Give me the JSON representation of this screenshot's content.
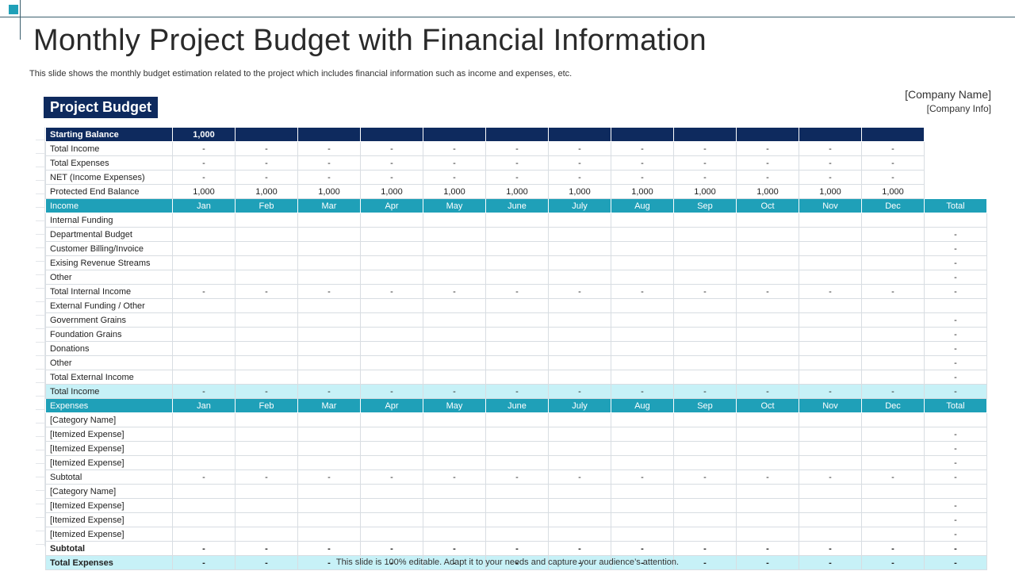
{
  "header": {
    "title": "Monthly Project Budget with Financial Information",
    "subtitle": "This slide shows the monthly budget estimation related to the project which includes financial information such as income and expenses, etc.",
    "badge": "Project Budget",
    "company_name": "[Company Name]",
    "company_info": "[Company Info]"
  },
  "colors": {
    "dark_navy": "#0e2a5e",
    "teal": "#1fa0b8",
    "light_teal": "#c7f1f7"
  },
  "top_block": [
    {
      "label": "Starting Balance",
      "values": [
        "1,000",
        "",
        "",
        "",
        "",
        "",
        "",
        "",
        "",
        "",
        "",
        ""
      ]
    },
    {
      "label": "Total Income",
      "values": [
        "-",
        "-",
        "-",
        "-",
        "-",
        "-",
        "-",
        "-",
        "-",
        "-",
        "-",
        "-"
      ]
    },
    {
      "label": "Total Expenses",
      "values": [
        "-",
        "-",
        "-",
        "-",
        "-",
        "-",
        "-",
        "-",
        "-",
        "-",
        "-",
        "-"
      ]
    },
    {
      "label": "NET (Income Expenses)",
      "values": [
        "-",
        "-",
        "-",
        "-",
        "-",
        "-",
        "-",
        "-",
        "-",
        "-",
        "-",
        "-"
      ]
    },
    {
      "label": "Protected End Balance",
      "values": [
        "1,000",
        "1,000",
        "1,000",
        "1,000",
        "1,000",
        "1,000",
        "1,000",
        "1,000",
        "1,000",
        "1,000",
        "1,000",
        "1,000"
      ]
    }
  ],
  "income_section": {
    "header": {
      "label": "Income",
      "months": [
        "Jan",
        "Feb",
        "Mar",
        "Apr",
        "May",
        "June",
        "July",
        "Aug",
        "Sep",
        "Oct",
        "Nov",
        "Dec"
      ],
      "total": "Total"
    },
    "rows": [
      {
        "label": "Internal Funding",
        "values": [
          "",
          "",
          "",
          "",
          "",
          "",
          "",
          "",
          "",
          "",
          "",
          ""
        ],
        "total": ""
      },
      {
        "label": "Departmental Budget",
        "values": [
          "",
          "",
          "",
          "",
          "",
          "",
          "",
          "",
          "",
          "",
          "",
          ""
        ],
        "total": "-"
      },
      {
        "label": "Customer Billing/Invoice",
        "values": [
          "",
          "",
          "",
          "",
          "",
          "",
          "",
          "",
          "",
          "",
          "",
          ""
        ],
        "total": "-"
      },
      {
        "label": "Exising Revenue Streams",
        "values": [
          "",
          "",
          "",
          "",
          "",
          "",
          "",
          "",
          "",
          "",
          "",
          ""
        ],
        "total": "-"
      },
      {
        "label": "Other",
        "values": [
          "",
          "",
          "",
          "",
          "",
          "",
          "",
          "",
          "",
          "",
          "",
          ""
        ],
        "total": "-"
      },
      {
        "label": "Total Internal Income",
        "values": [
          "-",
          "-",
          "-",
          "-",
          "-",
          "-",
          "-",
          "-",
          "-",
          "-",
          "-",
          "-"
        ],
        "total": "-"
      },
      {
        "label": "External Funding / Other",
        "values": [
          "",
          "",
          "",
          "",
          "",
          "",
          "",
          "",
          "",
          "",
          "",
          ""
        ],
        "total": ""
      },
      {
        "label": "Government Grains",
        "values": [
          "",
          "",
          "",
          "",
          "",
          "",
          "",
          "",
          "",
          "",
          "",
          ""
        ],
        "total": "-"
      },
      {
        "label": "Foundation Grains",
        "values": [
          "",
          "",
          "",
          "",
          "",
          "",
          "",
          "",
          "",
          "",
          "",
          ""
        ],
        "total": "-"
      },
      {
        "label": "Donations",
        "values": [
          "",
          "",
          "",
          "",
          "",
          "",
          "",
          "",
          "",
          "",
          "",
          ""
        ],
        "total": "-"
      },
      {
        "label": "Other",
        "values": [
          "",
          "",
          "",
          "",
          "",
          "",
          "",
          "",
          "",
          "",
          "",
          ""
        ],
        "total": "-"
      },
      {
        "label": "Total External Income",
        "values": [
          "",
          "",
          "",
          "",
          "",
          "",
          "",
          "",
          "",
          "",
          "",
          ""
        ],
        "total": "-"
      },
      {
        "label": "Total Income",
        "values": [
          "-",
          "-",
          "-",
          "-",
          "-",
          "-",
          "-",
          "-",
          "-",
          "-",
          "-",
          "-"
        ],
        "total": "-",
        "highlight": true
      }
    ]
  },
  "expense_section": {
    "header": {
      "label": "Expenses",
      "months": [
        "Jan",
        "Feb",
        "Mar",
        "Apr",
        "May",
        "June",
        "July",
        "Aug",
        "Sep",
        "Oct",
        "Nov",
        "Dec"
      ],
      "total": "Total"
    },
    "rows": [
      {
        "label": "[Category Name]",
        "values": [
          "",
          "",
          "",
          "",
          "",
          "",
          "",
          "",
          "",
          "",
          "",
          ""
        ],
        "total": ""
      },
      {
        "label": "[Itemized Expense]",
        "values": [
          "",
          "",
          "",
          "",
          "",
          "",
          "",
          "",
          "",
          "",
          "",
          ""
        ],
        "total": "-"
      },
      {
        "label": "[Itemized Expense]",
        "values": [
          "",
          "",
          "",
          "",
          "",
          "",
          "",
          "",
          "",
          "",
          "",
          ""
        ],
        "total": "-"
      },
      {
        "label": "[Itemized Expense]",
        "values": [
          "",
          "",
          "",
          "",
          "",
          "",
          "",
          "",
          "",
          "",
          "",
          ""
        ],
        "total": "-"
      },
      {
        "label": "Subtotal",
        "values": [
          "-",
          "-",
          "-",
          "-",
          "-",
          "-",
          "-",
          "-",
          "-",
          "-",
          "-",
          "-"
        ],
        "total": "-"
      },
      {
        "label": "[Category Name]",
        "values": [
          "",
          "",
          "",
          "",
          "",
          "",
          "",
          "",
          "",
          "",
          "",
          ""
        ],
        "total": ""
      },
      {
        "label": "[Itemized Expense]",
        "values": [
          "",
          "",
          "",
          "",
          "",
          "",
          "",
          "",
          "",
          "",
          "",
          ""
        ],
        "total": "-"
      },
      {
        "label": "[Itemized Expense]",
        "values": [
          "",
          "",
          "",
          "",
          "",
          "",
          "",
          "",
          "",
          "",
          "",
          ""
        ],
        "total": "-"
      },
      {
        "label": "[Itemized Expense]",
        "values": [
          "",
          "",
          "",
          "",
          "",
          "",
          "",
          "",
          "",
          "",
          "",
          ""
        ],
        "total": "-"
      },
      {
        "label": "Subtotal",
        "values": [
          "-",
          "-",
          "-",
          "-",
          "-",
          "-",
          "-",
          "-",
          "-",
          "-",
          "-",
          "-"
        ],
        "total": "-",
        "bold": true
      },
      {
        "label": "Total Expenses",
        "values": [
          "-",
          "-",
          "-",
          "-",
          "-",
          "-",
          "-",
          "-",
          "-",
          "-",
          "-",
          "-"
        ],
        "total": "-",
        "highlight": true,
        "bold": true
      }
    ]
  },
  "footer": "This slide is 100% editable. Adapt it to your needs and capture your audience’s attention."
}
